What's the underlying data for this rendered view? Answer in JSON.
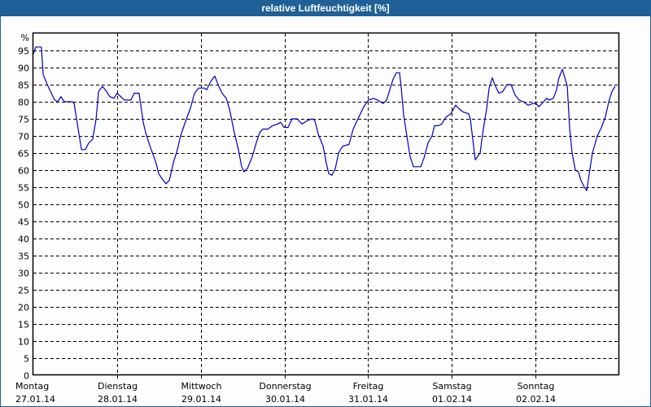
{
  "window": {
    "title": "relative Luftfeuchtigkeit [%]",
    "title_bar_color": "#1f6096",
    "border_color": "#1f6096",
    "background_color": "#fcfdfc"
  },
  "chart_data": {
    "type": "line",
    "title": "relative Luftfeuchtigkeit [%]",
    "xlabel": "",
    "ylabel": "%",
    "ylim": [
      0,
      100
    ],
    "yticks": [
      0,
      5,
      10,
      15,
      20,
      25,
      30,
      35,
      40,
      45,
      50,
      55,
      60,
      65,
      70,
      75,
      80,
      85,
      90,
      95
    ],
    "grid": true,
    "grid_style": "dashed",
    "line_color": "#0000c0",
    "x_unit": "hours since Montag 27.01.14 00:00",
    "xlim": [
      0,
      168
    ],
    "x_categories": [
      {
        "day": "Montag",
        "date": "27.01.14"
      },
      {
        "day": "Dienstag",
        "date": "28.01.14"
      },
      {
        "day": "Mittwoch",
        "date": "29.01.14"
      },
      {
        "day": "Donnerstag",
        "date": "30.01.14"
      },
      {
        "day": "Freitag",
        "date": "31.01.14"
      },
      {
        "day": "Samstag",
        "date": "01.02.14"
      },
      {
        "day": "Sonntag",
        "date": "02.02.14"
      }
    ],
    "series": [
      {
        "name": "relative Luftfeuchtigkeit",
        "x": [
          0,
          0.7,
          2.3,
          2.8,
          4.0,
          6.1,
          7.0,
          7.9,
          8.9,
          11.2,
          11.7,
          13.8,
          14.9,
          15.9,
          17.0,
          18.0,
          18.7,
          19.8,
          21.0,
          21.9,
          23.1,
          24.0,
          26.1,
          28.0,
          28.9,
          30.3,
          30.8,
          31.5,
          32.2,
          33.1,
          34.5,
          35.2,
          35.9,
          36.9,
          38.0,
          39.0,
          40.1,
          41.3,
          42.2,
          43.9,
          45.0,
          46.2,
          47.4,
          49.0,
          49.7,
          50.9,
          52.0,
          53.2,
          54.1,
          55.3,
          56.2,
          57.6,
          58.8,
          59.7,
          60.4,
          61.4,
          62.8,
          63.9,
          64.9,
          65.8,
          67.2,
          68.6,
          70.0,
          70.9,
          71.9,
          73.0,
          74.2,
          75.6,
          76.1,
          77.0,
          78.6,
          80.0,
          80.7,
          81.7,
          83.1,
          84.0,
          84.7,
          85.6,
          86.6,
          87.5,
          88.7,
          90.5,
          91.7,
          93.3,
          94.7,
          96.1,
          97.5,
          98.7,
          100.3,
          101.3,
          102.2,
          103.1,
          104.1,
          105.0,
          105.5,
          106.2,
          107.1,
          108.0,
          109.0,
          111.1,
          112.0,
          113.2,
          114.3,
          115.0,
          116.2,
          117.1,
          118.3,
          119.7,
          121.1,
          122.0,
          123.2,
          124.8,
          125.3,
          126.0,
          126.7,
          127.4,
          128.1,
          129.0,
          130.0,
          130.7,
          131.6,
          132.3,
          133.5,
          134.6,
          135.8,
          137.0,
          138.1,
          139.3,
          140.5,
          141.9,
          143.3,
          144.2,
          144.9,
          146.3,
          147.2,
          147.9,
          149.1,
          150.0,
          150.7,
          151.7,
          152.1,
          153.1,
          153.8,
          154.5,
          155.4,
          156.3,
          157.0,
          158.0,
          158.7,
          159.4,
          160.3,
          161.7,
          162.9,
          164.0,
          165.0,
          165.9,
          166.8
        ],
        "values": [
          94,
          96,
          96,
          88,
          85,
          80.5,
          80,
          81.5,
          80,
          80,
          79.5,
          66,
          66,
          68,
          69,
          75,
          83,
          84.5,
          83,
          81.5,
          81,
          82.5,
          80.5,
          80.5,
          82.5,
          82.5,
          79,
          74,
          71,
          68,
          64,
          62,
          59,
          57.5,
          56,
          57,
          62,
          66,
          70,
          75,
          78,
          82.5,
          84,
          84,
          83.5,
          86,
          87.5,
          84.5,
          82.5,
          81,
          78,
          71,
          66,
          61,
          59.5,
          60.5,
          64,
          68,
          71,
          72,
          72,
          73,
          73.5,
          74,
          72.5,
          72.5,
          75,
          75,
          74.5,
          73.5,
          74.5,
          75,
          74.5,
          70.5,
          67,
          62,
          59,
          58.5,
          60.5,
          65,
          67,
          67.5,
          72,
          75.5,
          78.5,
          80.5,
          81,
          80.5,
          79.5,
          80.5,
          83.5,
          86.5,
          88.5,
          88.5,
          84,
          76,
          70,
          64,
          61,
          61,
          63.5,
          68,
          70,
          73,
          73,
          73.5,
          75.5,
          76.5,
          79,
          78,
          77,
          76.5,
          75,
          69,
          63,
          64,
          65,
          72,
          78,
          84,
          87,
          85,
          82.5,
          83,
          85,
          85,
          82,
          80.5,
          80,
          79,
          79.5,
          79.5,
          78.5,
          80,
          81,
          80.5,
          81,
          83.5,
          87,
          89.5,
          88,
          84.5,
          72,
          65,
          60,
          59.5,
          57,
          55,
          54,
          59,
          65,
          70,
          72.5,
          75.5,
          80,
          83,
          84.5
        ]
      }
    ]
  }
}
